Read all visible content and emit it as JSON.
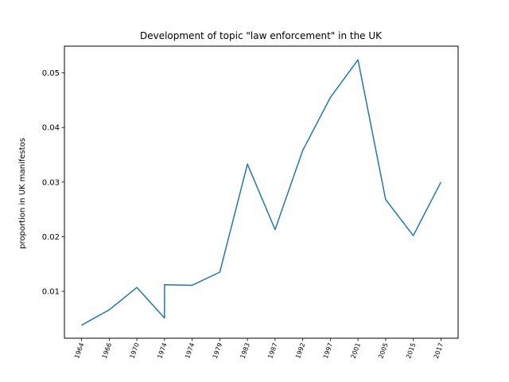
{
  "chart_data": {
    "type": "line",
    "title": "Development of topic \"law enforcement\" in the UK",
    "xlabel": "",
    "ylabel": "proportion in UK manifestos",
    "x_tick_labels": [
      "1964",
      "1966",
      "1970",
      "1974",
      "1974",
      "1979",
      "1983",
      "1987",
      "1992",
      "1997",
      "2001",
      "2005",
      "2015",
      "2017"
    ],
    "y_ticks": [
      0.01,
      0.02,
      0.03,
      0.04,
      0.05
    ],
    "y_tick_labels": [
      "0.01",
      "0.02",
      "0.03",
      "0.04",
      "0.05"
    ],
    "ylim": [
      0.0014,
      0.0549
    ],
    "grid": false,
    "series": [
      {
        "color": "#1f77b4",
        "values": [
          0.0038,
          0.0066,
          0.0107,
          0.0051,
          0.0112,
          0.0111,
          0.0135,
          0.0333,
          0.0213,
          0.0358,
          0.0455,
          0.0524,
          0.0268,
          0.0202,
          0.03
        ]
      }
    ],
    "x_positions": [
      0,
      1,
      2,
      3,
      3,
      4,
      5,
      6,
      7,
      8,
      9,
      10,
      11,
      12,
      13
    ]
  }
}
